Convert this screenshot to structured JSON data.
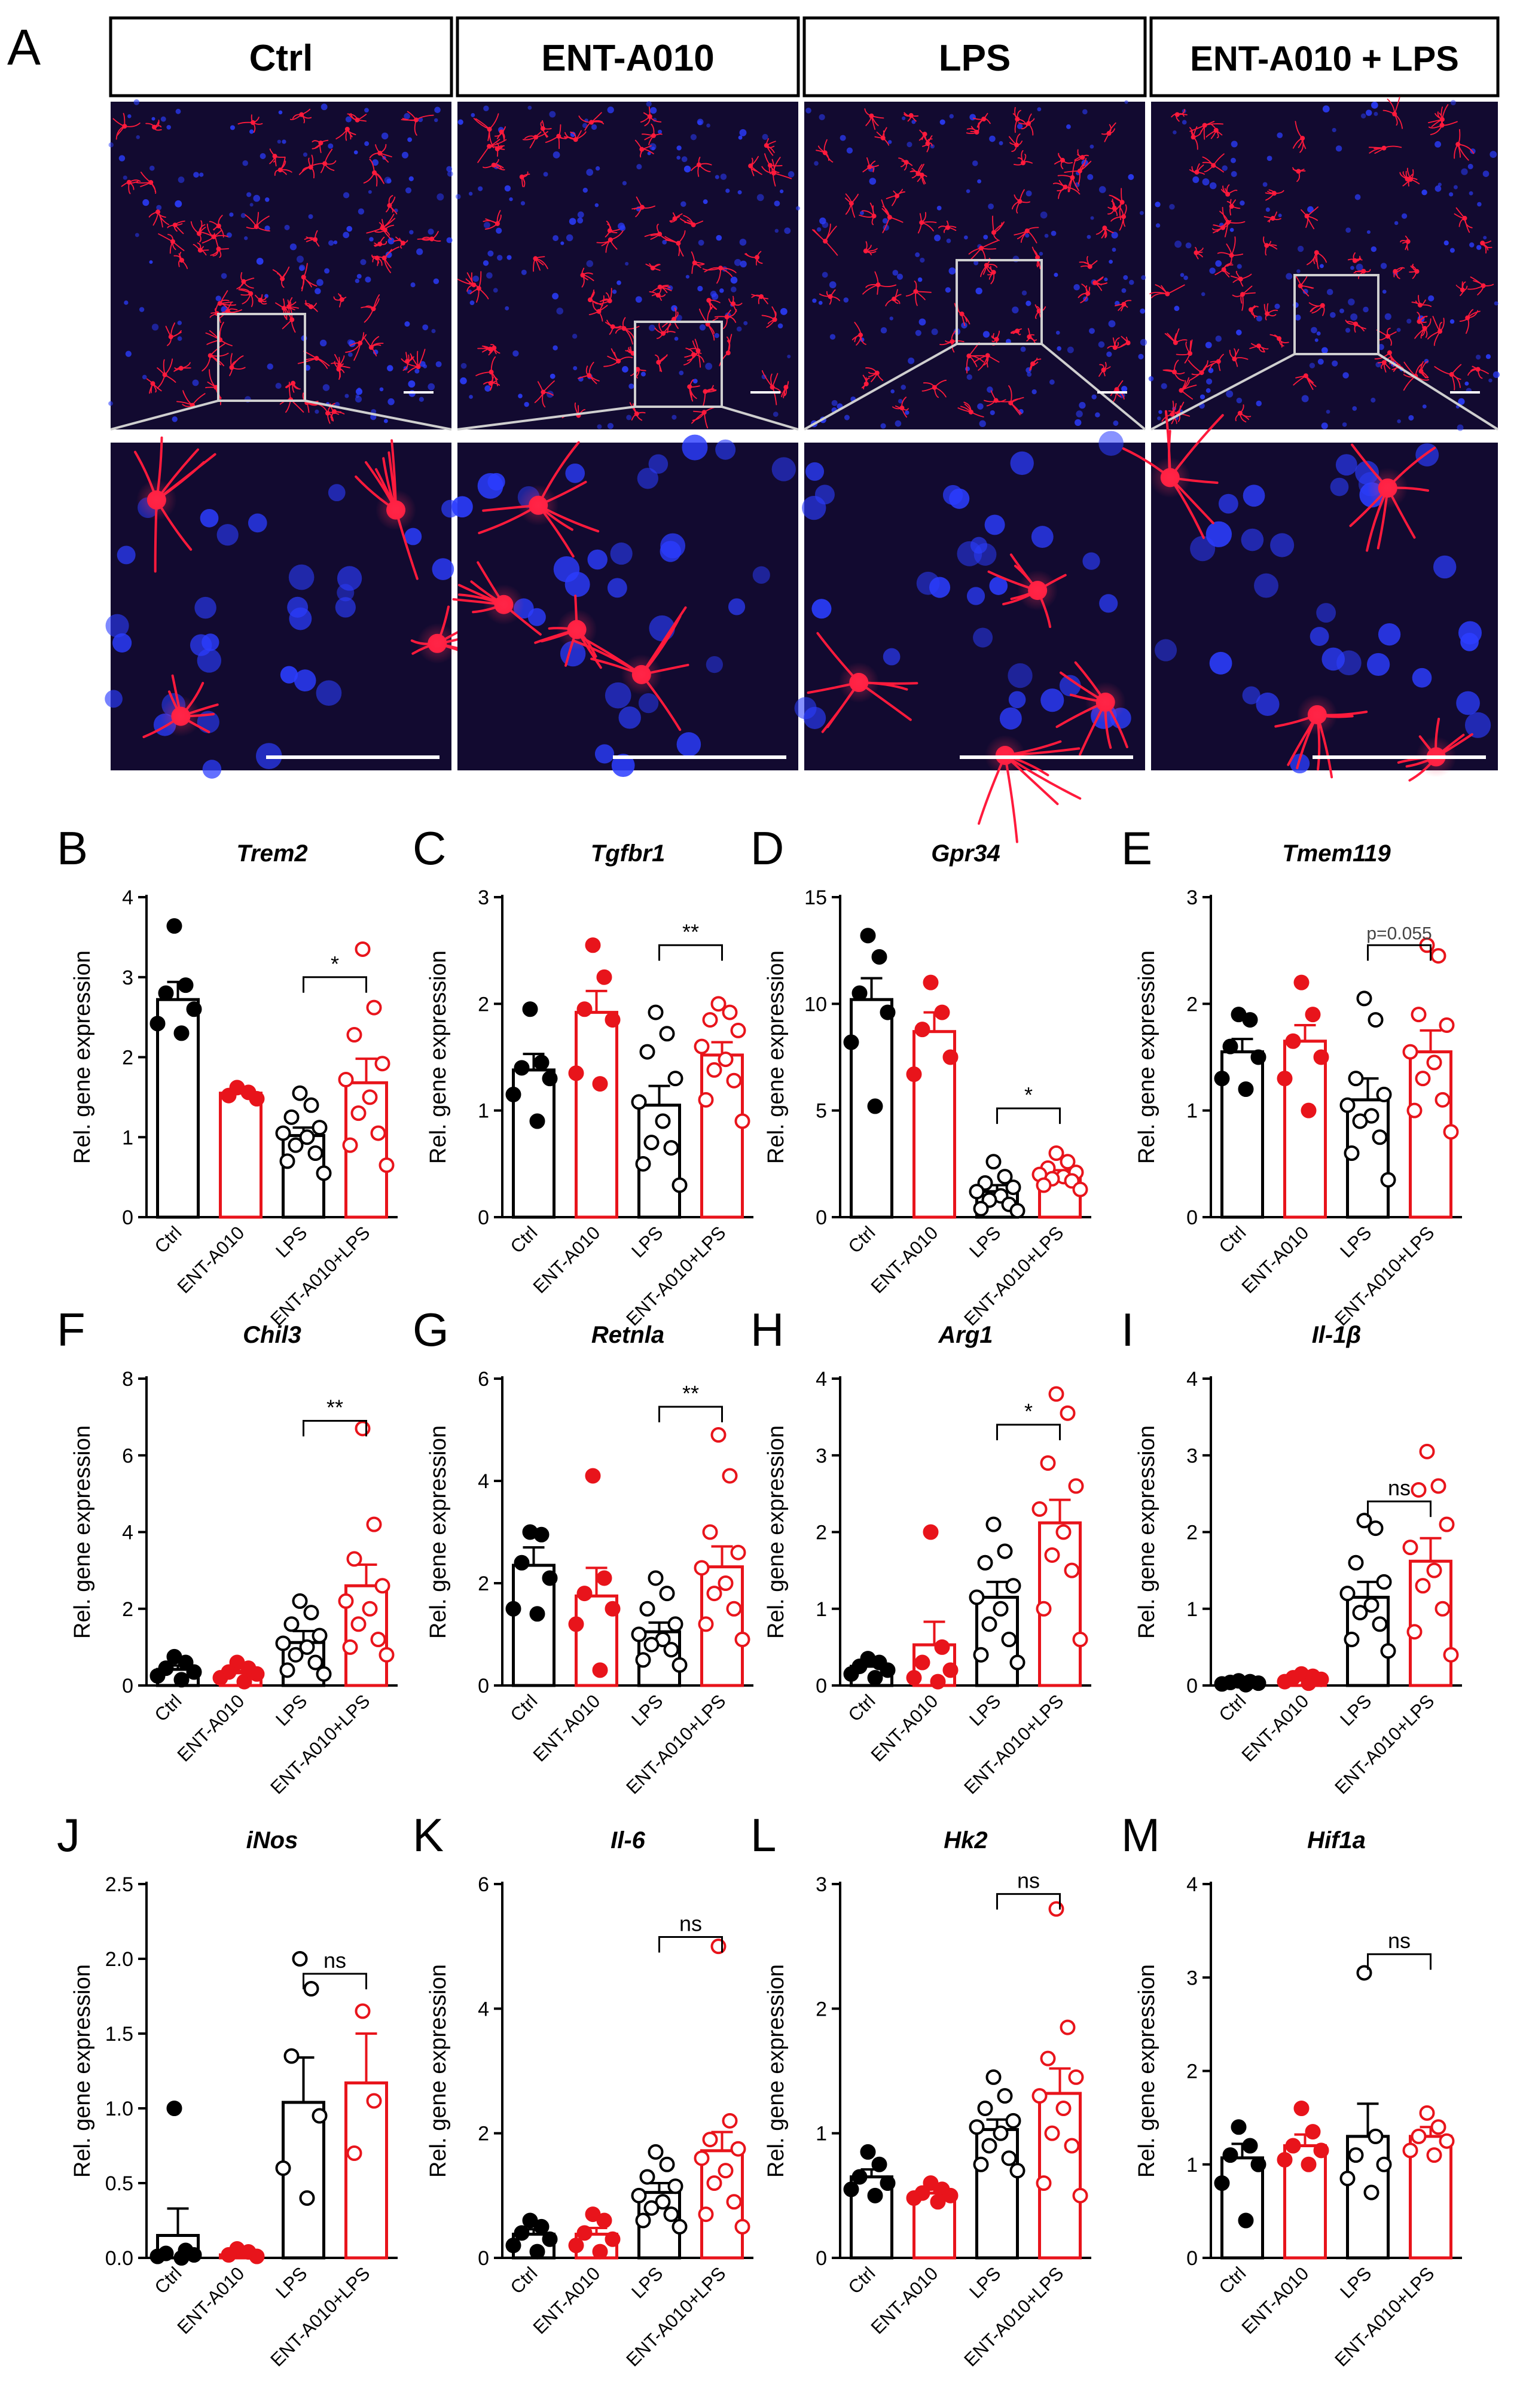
{
  "panel_a": {
    "letter": "A",
    "columns": [
      {
        "label": "Ctrl"
      },
      {
        "label": "ENT-A010"
      },
      {
        "label": "LPS"
      },
      {
        "label": "ENT-A010 + LPS"
      }
    ]
  },
  "colors": {
    "ctrl": "#000000",
    "treated": "#e8141b",
    "microglia": "#ff1a3c",
    "nuclei": "#2b3dff",
    "tissue_bg": "#120a30"
  },
  "chart_data": [
    {
      "letter": "B",
      "type": "bar",
      "title": "Trem2",
      "ylabel": "Rel. gene expression",
      "categories": [
        "Ctrl",
        "ENT-A010",
        "LPS",
        "ENT-A010+LPS"
      ],
      "yticks": [
        "0",
        "1",
        "2",
        "3",
        "4"
      ],
      "ylim": [
        0,
        4
      ],
      "series": [
        {
          "values": [
            2.72,
            1.55,
            1.02,
            1.68
          ]
        }
      ],
      "sem": [
        0.22,
        0.05,
        0.1,
        0.3
      ],
      "points": [
        [
          3.64,
          2.9,
          2.8,
          2.6,
          2.42,
          2.3
        ],
        [
          1.62,
          1.56,
          1.52,
          1.48
        ],
        [
          1.55,
          1.4,
          1.25,
          1.12,
          1.05,
          1.0,
          0.9,
          0.8,
          0.7,
          0.55
        ],
        [
          3.35,
          2.62,
          2.28,
          1.92,
          1.72,
          1.5,
          1.3,
          1.05,
          0.9,
          0.65
        ]
      ],
      "comparison": {
        "from": 2,
        "to": 3,
        "label": "*",
        "y": 3.0
      }
    },
    {
      "letter": "C",
      "type": "bar",
      "title": "Tgfbr1",
      "ylabel": "Rel. gene expression",
      "categories": [
        "Ctrl",
        "ENT-A010",
        "LPS",
        "ENT-A010+LPS"
      ],
      "yticks": [
        "0",
        "1",
        "2",
        "3"
      ],
      "ylim": [
        0,
        3
      ],
      "series": [
        {
          "values": [
            1.38,
            1.92,
            1.05,
            1.52
          ]
        }
      ],
      "sem": [
        0.15,
        0.2,
        0.18,
        0.12
      ],
      "points": [
        [
          1.95,
          1.45,
          1.4,
          1.3,
          1.15,
          0.9
        ],
        [
          2.55,
          2.25,
          1.95,
          1.85,
          1.35,
          1.25
        ],
        [
          1.92,
          1.72,
          1.55,
          1.3,
          1.08,
          0.9,
          0.7,
          0.65,
          0.5,
          0.3
        ],
        [
          2.0,
          1.92,
          1.85,
          1.75,
          1.6,
          1.48,
          1.38,
          1.28,
          1.1,
          0.9
        ]
      ],
      "comparison": {
        "from": 2,
        "to": 3,
        "label": "**",
        "y": 2.55
      }
    },
    {
      "letter": "D",
      "type": "bar",
      "title": "Gpr34",
      "ylabel": "Rel. gene expression",
      "categories": [
        "Ctrl",
        "ENT-A010",
        "LPS",
        "ENT-A010+LPS"
      ],
      "yticks": [
        "0",
        "5",
        "10",
        "15"
      ],
      "ylim": [
        0,
        15
      ],
      "series": [
        {
          "values": [
            10.2,
            8.7,
            1.2,
            2.0
          ]
        }
      ],
      "sem": [
        1.0,
        0.9,
        0.3,
        0.2
      ],
      "points": [
        [
          13.2,
          12.2,
          10.5,
          9.6,
          8.2,
          5.2
        ],
        [
          11.0,
          9.6,
          8.8,
          7.5,
          6.7
        ],
        [
          2.6,
          1.9,
          1.6,
          1.4,
          1.2,
          1.0,
          0.8,
          0.6,
          0.4,
          0.3
        ],
        [
          3.0,
          2.6,
          2.3,
          2.1,
          2.0,
          1.9,
          1.8,
          1.7,
          1.5,
          1.3
        ]
      ],
      "comparison": {
        "from": 2,
        "to": 3,
        "label": "*",
        "y": 5.1
      }
    },
    {
      "letter": "E",
      "type": "bar",
      "title": "Tmem119",
      "ylabel": "Rel. gene expression",
      "categories": [
        "Ctrl",
        "ENT-A010",
        "LPS",
        "ENT-A010+LPS"
      ],
      "yticks": [
        "0",
        "1",
        "2",
        "3"
      ],
      "ylim": [
        0,
        3
      ],
      "series": [
        {
          "values": [
            1.55,
            1.65,
            1.1,
            1.55
          ]
        }
      ],
      "sem": [
        0.12,
        0.15,
        0.2,
        0.2
      ],
      "points": [
        [
          1.9,
          1.85,
          1.6,
          1.5,
          1.3,
          1.2
        ],
        [
          2.2,
          1.9,
          1.65,
          1.5,
          1.3,
          1.0
        ],
        [
          2.05,
          1.85,
          1.3,
          1.15,
          1.05,
          0.95,
          0.9,
          0.75,
          0.6,
          0.35
        ],
        [
          2.55,
          2.45,
          1.9,
          1.8,
          1.55,
          1.45,
          1.3,
          1.1,
          1.0,
          0.8
        ]
      ],
      "comparison": {
        "from": 2,
        "to": 3,
        "label": "p=0.055",
        "y": 2.55
      }
    },
    {
      "letter": "F",
      "type": "bar",
      "title": "Chil3",
      "ylabel": "Rel. gene expression",
      "categories": [
        "Ctrl",
        "ENT-A010",
        "LPS",
        "ENT-A010+LPS"
      ],
      "yticks": [
        "0",
        "2",
        "4",
        "6",
        "8"
      ],
      "ylim": [
        0,
        8
      ],
      "series": [
        {
          "values": [
            0.42,
            0.33,
            1.12,
            2.6
          ]
        }
      ],
      "sem": [
        0.1,
        0.05,
        0.3,
        0.55
      ],
      "points": [
        [
          0.75,
          0.6,
          0.45,
          0.35,
          0.25,
          0.15
        ],
        [
          0.6,
          0.45,
          0.35,
          0.3,
          0.2,
          0.1
        ],
        [
          2.2,
          1.9,
          1.6,
          1.3,
          1.1,
          1.0,
          0.8,
          0.6,
          0.4,
          0.3
        ],
        [
          6.7,
          4.2,
          3.3,
          2.6,
          2.2,
          2.0,
          1.6,
          1.2,
          1.0,
          0.8
        ]
      ],
      "comparison": {
        "from": 2,
        "to": 3,
        "label": "**",
        "y": 6.9
      }
    },
    {
      "letter": "G",
      "type": "bar",
      "title": "Retnla",
      "ylabel": "Rel. gene expression",
      "categories": [
        "Ctrl",
        "ENT-A010",
        "LPS",
        "ENT-A010+LPS"
      ],
      "yticks": [
        "0",
        "2",
        "4",
        "6"
      ],
      "ylim": [
        0,
        6
      ],
      "series": [
        {
          "values": [
            2.35,
            1.75,
            1.05,
            2.32
          ]
        }
      ],
      "sem": [
        0.35,
        0.55,
        0.18,
        0.4
      ],
      "points": [
        [
          3.0,
          2.95,
          2.4,
          2.1,
          1.5,
          1.4
        ],
        [
          4.1,
          2.1,
          1.8,
          1.5,
          1.2,
          0.3
        ],
        [
          2.1,
          1.8,
          1.5,
          1.2,
          1.0,
          0.9,
          0.8,
          0.7,
          0.5,
          0.4
        ],
        [
          4.9,
          4.1,
          3.0,
          2.6,
          2.3,
          2.0,
          1.8,
          1.5,
          1.2,
          0.9
        ]
      ],
      "comparison": {
        "from": 2,
        "to": 3,
        "label": "**",
        "y": 5.45
      }
    },
    {
      "letter": "H",
      "type": "bar",
      "title": "Arg1",
      "ylabel": "Rel. gene expression",
      "categories": [
        "Ctrl",
        "ENT-A010",
        "LPS",
        "ENT-A010+LPS"
      ],
      "yticks": [
        "0",
        "1",
        "2",
        "3",
        "4"
      ],
      "ylim": [
        0,
        4
      ],
      "series": [
        {
          "values": [
            0.25,
            0.53,
            1.15,
            2.12
          ]
        }
      ],
      "sem": [
        0.07,
        0.3,
        0.2,
        0.3
      ],
      "points": [
        [
          0.35,
          0.3,
          0.25,
          0.2,
          0.15,
          0.1
        ],
        [
          2.0,
          0.5,
          0.3,
          0.2,
          0.1,
          0.05
        ],
        [
          2.1,
          1.75,
          1.6,
          1.3,
          1.15,
          1.0,
          0.8,
          0.6,
          0.4,
          0.3
        ],
        [
          3.8,
          3.55,
          2.9,
          2.6,
          2.3,
          2.0,
          1.7,
          1.5,
          1.0,
          0.6
        ]
      ],
      "comparison": {
        "from": 2,
        "to": 3,
        "label": "*",
        "y": 3.4
      }
    },
    {
      "letter": "I",
      "type": "bar",
      "title": "Il-1β",
      "ylabel": "Rel. gene expression",
      "categories": [
        "Ctrl",
        "ENT-A010",
        "LPS",
        "ENT-A010+LPS"
      ],
      "yticks": [
        "0",
        "1",
        "2",
        "3",
        "4"
      ],
      "ylim": [
        0,
        4
      ],
      "series": [
        {
          "values": [
            0.03,
            0.08,
            1.15,
            1.62
          ]
        }
      ],
      "sem": [
        0.01,
        0.03,
        0.2,
        0.3
      ],
      "points": [
        [
          0.06,
          0.05,
          0.04,
          0.03,
          0.02,
          0.01
        ],
        [
          0.15,
          0.12,
          0.1,
          0.08,
          0.05,
          0.03
        ],
        [
          2.15,
          2.05,
          1.6,
          1.35,
          1.2,
          1.05,
          0.95,
          0.8,
          0.6,
          0.45
        ],
        [
          3.05,
          2.6,
          2.55,
          2.1,
          1.8,
          1.5,
          1.3,
          1.0,
          0.7,
          0.4
        ]
      ],
      "comparison": {
        "from": 2,
        "to": 3,
        "label": "ns",
        "y": 2.4
      }
    },
    {
      "letter": "J",
      "type": "bar",
      "title": "iNos",
      "ylabel": "Rel. gene expression",
      "categories": [
        "Ctrl",
        "ENT-A010",
        "LPS",
        "ENT-A010+LPS"
      ],
      "yticks": [
        "0.0",
        "0.5",
        "1.0",
        "1.5",
        "2.0",
        "2.5"
      ],
      "ylim": [
        0,
        2.5
      ],
      "series": [
        {
          "values": [
            0.15,
            0.02,
            1.04,
            1.17
          ]
        }
      ],
      "sem": [
        0.18,
        0.01,
        0.3,
        0.33
      ],
      "points": [
        [
          1.0,
          0.05,
          0.03,
          0.02,
          0.01,
          0.0
        ],
        [
          0.06,
          0.04,
          0.02,
          0.01
        ],
        [
          2.0,
          1.8,
          1.35,
          0.95,
          0.6,
          0.4
        ],
        [
          1.65,
          1.05,
          0.7
        ]
      ],
      "comparison": {
        "from": 2,
        "to": 3,
        "label": "ns",
        "y": 1.9
      }
    },
    {
      "letter": "K",
      "type": "bar",
      "title": "Il-6",
      "ylabel": "Rel. gene expression",
      "categories": [
        "Ctrl",
        "ENT-A010",
        "LPS",
        "ENT-A010+LPS"
      ],
      "yticks": [
        "0",
        "2",
        "4",
        "6"
      ],
      "ylim": [
        0,
        6
      ],
      "series": [
        {
          "values": [
            0.38,
            0.38,
            1.05,
            1.72
          ]
        }
      ],
      "sem": [
        0.08,
        0.1,
        0.15,
        0.3
      ],
      "points": [
        [
          0.6,
          0.5,
          0.4,
          0.3,
          0.2,
          0.1
        ],
        [
          0.7,
          0.6,
          0.4,
          0.3,
          0.2,
          0.1
        ],
        [
          1.7,
          1.5,
          1.3,
          1.15,
          1.0,
          0.9,
          0.8,
          0.7,
          0.6,
          0.5
        ],
        [
          5.0,
          2.2,
          1.9,
          1.75,
          1.6,
          1.4,
          1.2,
          0.9,
          0.7,
          0.5
        ]
      ],
      "comparison": {
        "from": 2,
        "to": 3,
        "label": "ns",
        "y": 5.15
      }
    },
    {
      "letter": "L",
      "type": "bar",
      "title": "Hk2",
      "ylabel": "Rel. gene expression",
      "categories": [
        "Ctrl",
        "ENT-A010",
        "LPS",
        "ENT-A010+LPS"
      ],
      "yticks": [
        "0",
        "1",
        "2",
        "3"
      ],
      "ylim": [
        0,
        3
      ],
      "series": [
        {
          "values": [
            0.65,
            0.52,
            1.03,
            1.32
          ]
        }
      ],
      "sem": [
        0.06,
        0.03,
        0.08,
        0.2
      ],
      "points": [
        [
          0.85,
          0.75,
          0.65,
          0.6,
          0.55,
          0.5
        ],
        [
          0.6,
          0.55,
          0.52,
          0.5,
          0.48,
          0.45
        ],
        [
          1.45,
          1.3,
          1.2,
          1.1,
          1.05,
          1.0,
          0.9,
          0.8,
          0.75,
          0.7
        ],
        [
          2.8,
          1.85,
          1.6,
          1.45,
          1.3,
          1.2,
          1.0,
          0.9,
          0.6,
          0.5
        ]
      ],
      "comparison": {
        "from": 2,
        "to": 3,
        "label": "ns",
        "y": 2.92
      }
    },
    {
      "letter": "M",
      "type": "bar",
      "title": "Hif1a",
      "ylabel": "Rel. gene expression",
      "categories": [
        "Ctrl",
        "ENT-A010",
        "LPS",
        "ENT-A010+LPS"
      ],
      "yticks": [
        "0",
        "1",
        "2",
        "3",
        "4"
      ],
      "ylim": [
        0,
        4
      ],
      "series": [
        {
          "values": [
            1.07,
            1.2,
            1.3,
            1.3
          ]
        }
      ],
      "sem": [
        0.15,
        0.12,
        0.35,
        0.1
      ],
      "points": [
        [
          1.4,
          1.2,
          1.1,
          1.0,
          0.8,
          0.4
        ],
        [
          1.6,
          1.35,
          1.2,
          1.15,
          1.05,
          1.0
        ],
        [
          3.05,
          1.3,
          1.1,
          1.0,
          0.85,
          0.7
        ],
        [
          1.55,
          1.4,
          1.3,
          1.25,
          1.15,
          1.1
        ]
      ],
      "comparison": {
        "from": 2,
        "to": 3,
        "label": "ns",
        "y": 3.25
      }
    }
  ]
}
